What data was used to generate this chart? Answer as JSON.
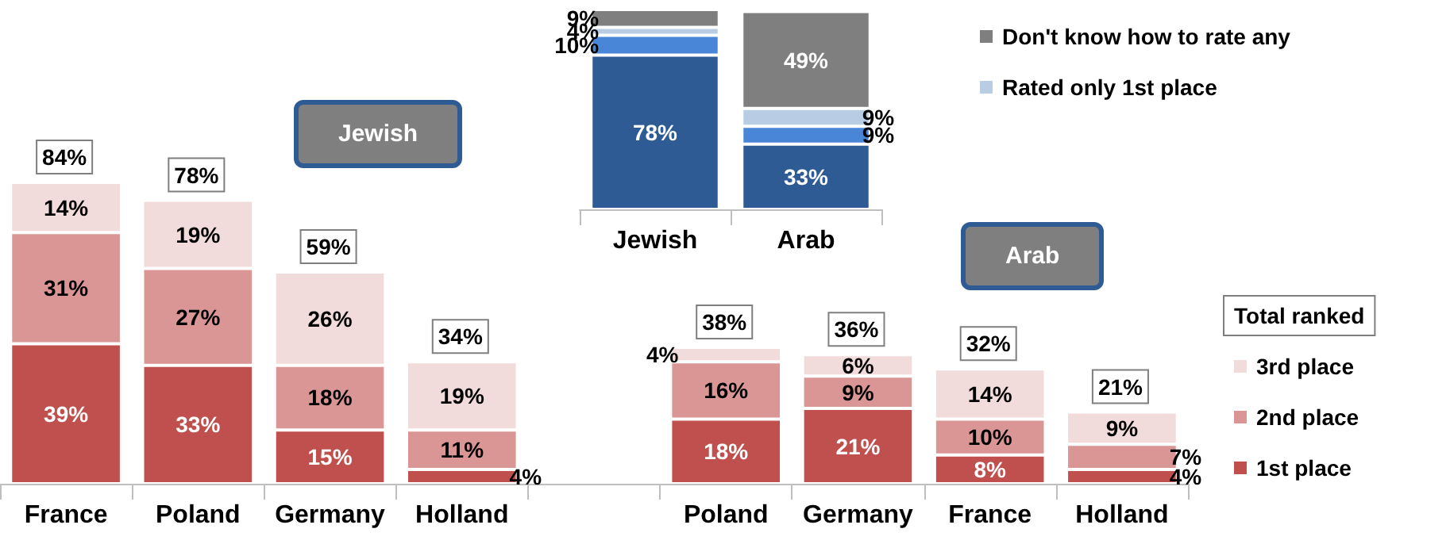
{
  "chart_data": [
    {
      "type": "bar",
      "stacked": true,
      "categories": [
        "France",
        "Poland",
        "Germany",
        "Holland",
        null,
        "Poland",
        "Germany",
        "France",
        "Holland"
      ],
      "series": [
        {
          "name": "1st place",
          "color": "#c0504d",
          "values": [
            39,
            33,
            15,
            4,
            null,
            18,
            21,
            8,
            4
          ],
          "value_labels": [
            "39%",
            "33%",
            "15%",
            "4%",
            null,
            "18%",
            "21%",
            "8%",
            "4%"
          ]
        },
        {
          "name": "2nd place",
          "color": "#d99694",
          "values": [
            31,
            27,
            18,
            11,
            null,
            16,
            9,
            10,
            7
          ],
          "value_labels": [
            "31%",
            "27%",
            "18%",
            "11%",
            null,
            "16%",
            "9%",
            "10%",
            "7%"
          ]
        },
        {
          "name": "3rd place",
          "color": "#f2dcdb",
          "values": [
            14,
            19,
            26,
            19,
            null,
            4,
            6,
            14,
            9
          ],
          "value_labels": [
            "14%",
            "19%",
            "26%",
            "19%",
            null,
            "4%",
            "6%",
            "14%",
            "9%"
          ]
        }
      ],
      "totals": [
        "84%",
        "78%",
        "59%",
        "34%",
        null,
        "38%",
        "36%",
        "32%",
        "21%"
      ],
      "legend_title": "Total ranked",
      "legend": "right",
      "annotations": [
        "Jewish",
        "Arab"
      ]
    },
    {
      "type": "bar",
      "stacked": true,
      "categories": [
        "Jewish",
        "Arab"
      ],
      "series": [
        {
          "color": "#2f5b95",
          "values": [
            78,
            33
          ],
          "value_labels": [
            "78%",
            "33%"
          ]
        },
        {
          "color": "#4a86d8",
          "values": [
            10,
            9
          ],
          "value_labels": [
            "10%",
            "9%"
          ]
        },
        {
          "name": "Rated only 1st place",
          "color": "#b8cce4",
          "values": [
            4,
            9
          ],
          "value_labels": [
            "4%",
            "9%"
          ]
        },
        {
          "name": "Don't know how to rate any",
          "color": "#7f7f7f",
          "values": [
            9,
            49
          ],
          "value_labels": [
            "9%",
            "49%"
          ]
        }
      ],
      "legend": "right"
    }
  ]
}
